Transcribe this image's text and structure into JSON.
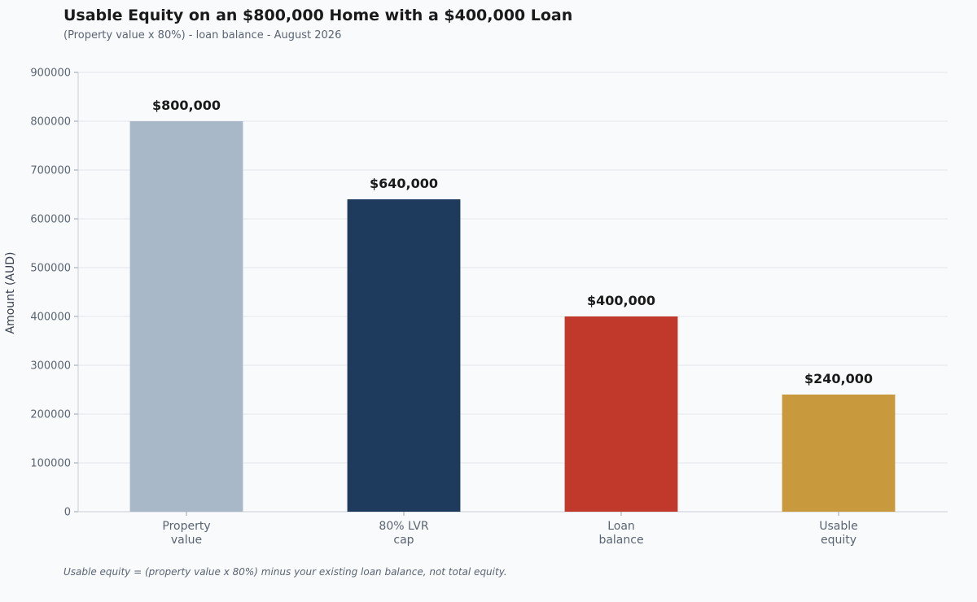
{
  "chart_data": {
    "type": "bar",
    "title": "Usable Equity on an $800,000 Home with a $400,000 Loan",
    "subtitle": "(Property value x 80%) - loan balance - August 2026",
    "ylabel": "Amount (AUD)",
    "xlabel": "",
    "ylim": [
      0,
      900000
    ],
    "yticks": [
      "0",
      "100000",
      "200000",
      "300000",
      "400000",
      "500000",
      "600000",
      "700000",
      "800000",
      "900000"
    ],
    "ytick_values": [
      0,
      100000,
      200000,
      300000,
      400000,
      500000,
      600000,
      700000,
      800000,
      900000
    ],
    "grid": true,
    "categories": [
      {
        "line1": "Property",
        "line2": "value"
      },
      {
        "line1": "80% LVR",
        "line2": "cap"
      },
      {
        "line1": "Loan",
        "line2": "balance"
      },
      {
        "line1": "Usable",
        "line2": "equity"
      }
    ],
    "values": [
      800000,
      640000,
      400000,
      240000
    ],
    "data_labels": [
      "$800,000",
      "$640,000",
      "$400,000",
      "$240,000"
    ],
    "colors": [
      "#a8b8c8",
      "#1e3a5c",
      "#c0392b",
      "#c99a3d"
    ],
    "footnote": "Usable equity = (property value x 80%) minus your existing loan balance, not total equity."
  }
}
